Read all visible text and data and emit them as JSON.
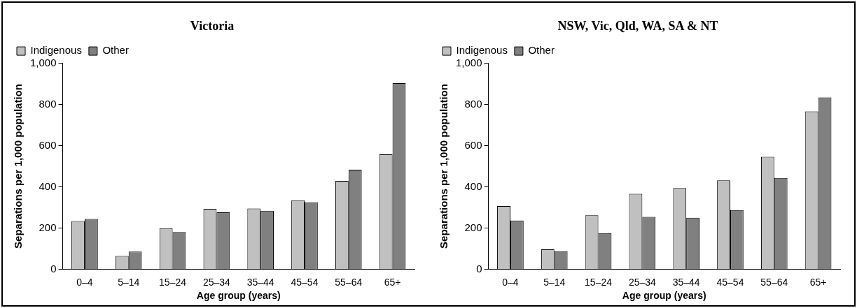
{
  "chart_data": [
    {
      "type": "bar",
      "title": "Victoria",
      "xlabel": "Age group (years)",
      "ylabel": "Separations per 1,000 population",
      "categories": [
        "0–4",
        "5–14",
        "15–24",
        "25–34",
        "35–44",
        "45–54",
        "55–64",
        "65+"
      ],
      "series": [
        {
          "name": "Indigenous",
          "color": "#c0c0c0",
          "values": [
            234,
            64,
            199,
            293,
            295,
            335,
            429,
            558
          ]
        },
        {
          "name": "Other",
          "color": "#808080",
          "values": [
            244,
            85,
            180,
            276,
            284,
            325,
            483,
            904
          ]
        }
      ],
      "ylim": [
        0,
        1000
      ],
      "yticks": [
        0,
        {
          "value": 200,
          "label": "200"
        },
        {
          "value": 400,
          "label": "400"
        },
        {
          "value": 600,
          "label": "600"
        },
        {
          "value": 800,
          "label": "800"
        },
        {
          "value": 1000,
          "label": "1,000"
        }
      ],
      "grid": false,
      "legend": "top left"
    },
    {
      "type": "bar",
      "title": "NSW, Vic, Qld, WA, SA & NT",
      "xlabel": "Age group (years)",
      "ylabel": "Separations per 1,000 population",
      "categories": [
        "0–4",
        "5–14",
        "15–24",
        "25–34",
        "35–44",
        "45–54",
        "55–64",
        "65+"
      ],
      "series": [
        {
          "name": "Indigenous",
          "color": "#c0c0c0",
          "values": [
            307,
            96,
            262,
            366,
            394,
            431,
            546,
            766
          ]
        },
        {
          "name": "Other",
          "color": "#808080",
          "values": [
            236,
            87,
            175,
            254,
            250,
            287,
            443,
            834
          ]
        }
      ],
      "ylim": [
        0,
        1000
      ],
      "yticks": [
        0,
        {
          "value": 200,
          "label": "200"
        },
        {
          "value": 400,
          "label": "400"
        },
        {
          "value": 600,
          "label": "600"
        },
        {
          "value": 800,
          "label": "800"
        },
        {
          "value": 1000,
          "label": "1,000"
        }
      ],
      "grid": false,
      "legend": "top left"
    }
  ]
}
